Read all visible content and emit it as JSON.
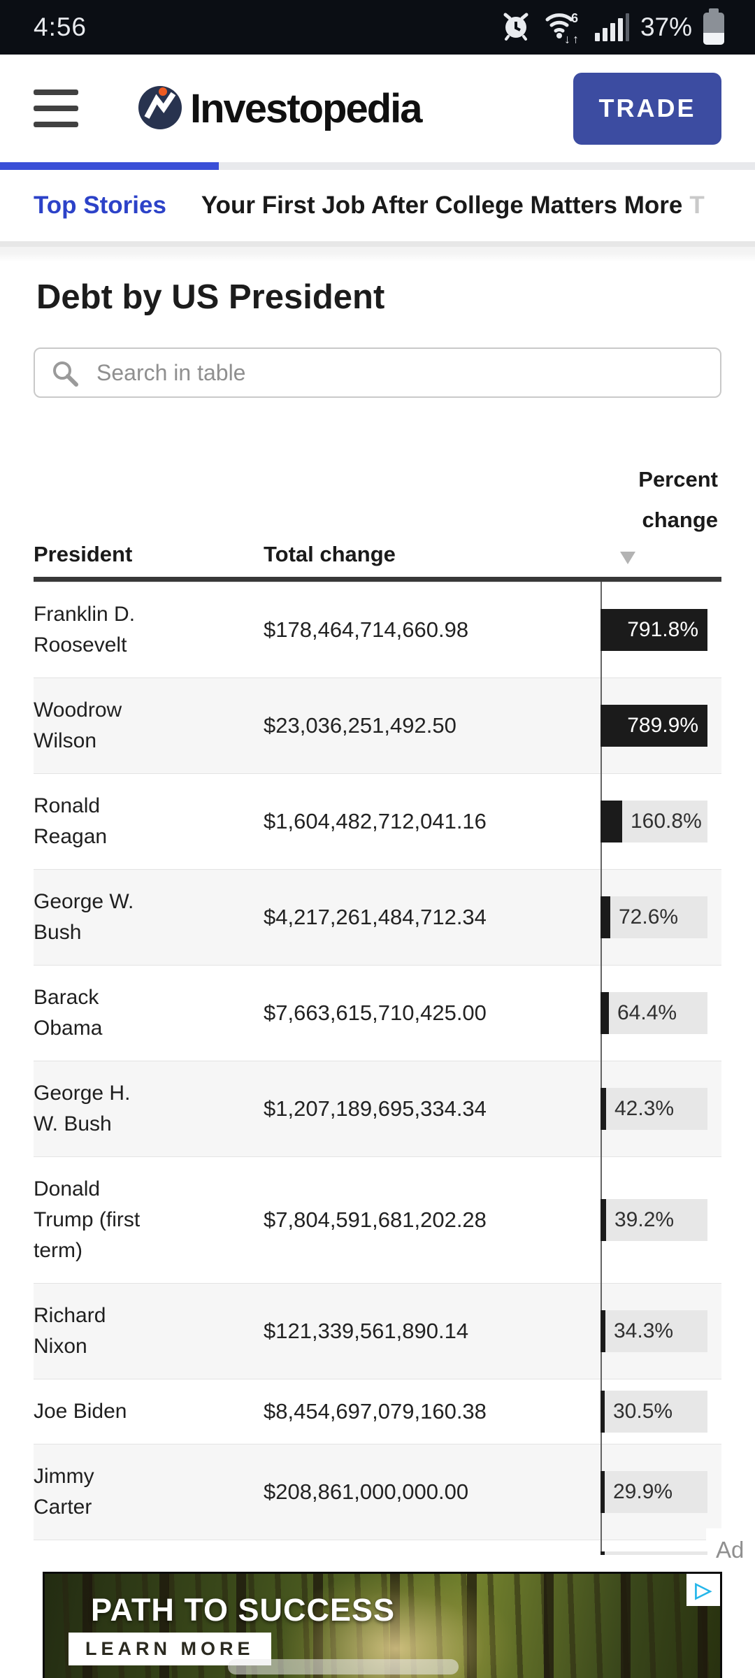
{
  "status_bar": {
    "time": "4:56",
    "battery_text": "37%",
    "battery_level": 37,
    "icons": [
      "alarm-icon",
      "wifi6-arrows-icon",
      "signal-strength-icon",
      "battery-icon"
    ]
  },
  "header": {
    "brand": "Investopedia",
    "trade_label": "TRADE",
    "accent_color": "#3c4ca1",
    "logo_colors": {
      "circle": "#28334f",
      "dot": "#ee5b21",
      "mark": "#ffffff"
    }
  },
  "progress": {
    "fraction": 0.29,
    "bar_color": "#3a4fd7"
  },
  "top_stories": {
    "label": "Top Stories",
    "headline": "Your First Job After College Matters More",
    "truncated_next": "T"
  },
  "page": {
    "title": "Debt by US President"
  },
  "search": {
    "placeholder": "Search in table"
  },
  "table": {
    "columns": {
      "president": "President",
      "total_change": "Total change",
      "percent_line1": "Percent",
      "percent_line2": "change"
    },
    "sort_indicator": "descending",
    "max_percent": 791.8,
    "rows": [
      {
        "president": "Franklin D. Roosevelt",
        "total_change": "$178,464,714,660.98",
        "percent": "791.8%",
        "percent_value": 791.8
      },
      {
        "president": "Woodrow Wilson",
        "total_change": "$23,036,251,492.50",
        "percent": "789.9%",
        "percent_value": 789.9
      },
      {
        "president": "Ronald Reagan",
        "total_change": "$1,604,482,712,041.16",
        "percent": "160.8%",
        "percent_value": 160.8
      },
      {
        "president": "George W. Bush",
        "total_change": "$4,217,261,484,712.34",
        "percent": "72.6%",
        "percent_value": 72.6
      },
      {
        "president": "Barack Obama",
        "total_change": "$7,663,615,710,425.00",
        "percent": "64.4%",
        "percent_value": 64.4
      },
      {
        "president": "George H. W. Bush",
        "total_change": "$1,207,189,695,334.34",
        "percent": "42.3%",
        "percent_value": 42.3
      },
      {
        "president": "Donald Trump (first term)",
        "total_change": "$7,804,591,681,202.28",
        "percent": "39.2%",
        "percent_value": 39.2
      },
      {
        "president": "Richard Nixon",
        "total_change": "$121,339,561,890.14",
        "percent": "34.3%",
        "percent_value": 34.3
      },
      {
        "president": "Joe Biden",
        "total_change": "$8,454,697,079,160.38",
        "percent": "30.5%",
        "percent_value": 30.5
      },
      {
        "president": "Jimmy Carter",
        "total_change": "$208,861,000,000.00",
        "percent": "29.9%",
        "percent_value": 29.9
      }
    ]
  },
  "ad": {
    "marker": "Ad",
    "headline": "PATH TO SUCCESS",
    "cta": "LEARN MORE",
    "adchoices_icon": "adchoices-icon"
  },
  "chart_data": {
    "type": "bar",
    "orientation": "horizontal",
    "title": "Debt by US President",
    "categories": [
      "Franklin D. Roosevelt",
      "Woodrow Wilson",
      "Ronald Reagan",
      "George W. Bush",
      "Barack Obama",
      "George H. W. Bush",
      "Donald Trump (first term)",
      "Richard Nixon",
      "Joe Biden",
      "Jimmy Carter"
    ],
    "values": [
      791.8,
      789.9,
      160.8,
      72.6,
      64.4,
      42.3,
      39.2,
      34.3,
      30.5,
      29.9
    ],
    "xlabel": "Percent change",
    "ylabel": "President",
    "xlim": [
      0,
      791.8
    ],
    "bar_color": "#1b1b1b",
    "track_color": "#e7e7e7"
  }
}
